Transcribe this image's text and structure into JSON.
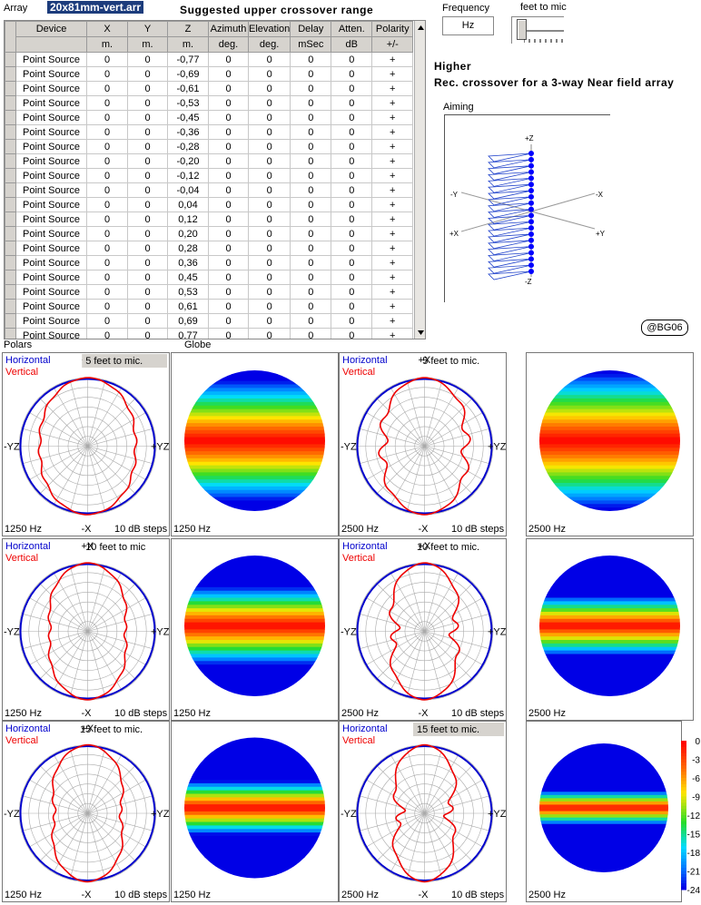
{
  "header": {
    "array_label": "Array",
    "file_name": "20x81mm-vert.arr",
    "title": "Suggested  upper  crossover range",
    "frequency_label": "Frequency",
    "frequency_unit": "Hz",
    "feet_label": "feet to mic"
  },
  "info": {
    "level": "Higher",
    "recommendation": "Rec. crossover for a 3-way Near field array"
  },
  "aiming": {
    "label": "Aiming",
    "axes": {
      "pz": "+Z",
      "mz": "-Z",
      "my": "-Y",
      "mx": "-X",
      "px": "+X",
      "py": "+Y"
    }
  },
  "copyright": "@BG06",
  "table": {
    "headers": [
      "Device",
      "X",
      "Y",
      "Z",
      "Azimuth",
      "Elevation",
      "Delay",
      "Atten.",
      "Polarity"
    ],
    "units": [
      "",
      "m.",
      "m.",
      "m.",
      "deg.",
      "deg.",
      "mSec",
      "dB",
      "+/-"
    ],
    "rows": [
      [
        "Point Source",
        "0",
        "0",
        "-0,77",
        "0",
        "0",
        "0",
        "0",
        "+"
      ],
      [
        "Point Source",
        "0",
        "0",
        "-0,69",
        "0",
        "0",
        "0",
        "0",
        "+"
      ],
      [
        "Point Source",
        "0",
        "0",
        "-0,61",
        "0",
        "0",
        "0",
        "0",
        "+"
      ],
      [
        "Point Source",
        "0",
        "0",
        "-0,53",
        "0",
        "0",
        "0",
        "0",
        "+"
      ],
      [
        "Point Source",
        "0",
        "0",
        "-0,45",
        "0",
        "0",
        "0",
        "0",
        "+"
      ],
      [
        "Point Source",
        "0",
        "0",
        "-0,36",
        "0",
        "0",
        "0",
        "0",
        "+"
      ],
      [
        "Point Source",
        "0",
        "0",
        "-0,28",
        "0",
        "0",
        "0",
        "0",
        "+"
      ],
      [
        "Point Source",
        "0",
        "0",
        "-0,20",
        "0",
        "0",
        "0",
        "0",
        "+"
      ],
      [
        "Point Source",
        "0",
        "0",
        "-0,12",
        "0",
        "0",
        "0",
        "0",
        "+"
      ],
      [
        "Point Source",
        "0",
        "0",
        "-0,04",
        "0",
        "0",
        "0",
        "0",
        "+"
      ],
      [
        "Point Source",
        "0",
        "0",
        "0,04",
        "0",
        "0",
        "0",
        "0",
        "+"
      ],
      [
        "Point Source",
        "0",
        "0",
        "0,12",
        "0",
        "0",
        "0",
        "0",
        "+"
      ],
      [
        "Point Source",
        "0",
        "0",
        "0,20",
        "0",
        "0",
        "0",
        "0",
        "+"
      ],
      [
        "Point Source",
        "0",
        "0",
        "0,28",
        "0",
        "0",
        "0",
        "0",
        "+"
      ],
      [
        "Point Source",
        "0",
        "0",
        "0,36",
        "0",
        "0",
        "0",
        "0",
        "+"
      ],
      [
        "Point Source",
        "0",
        "0",
        "0,45",
        "0",
        "0",
        "0",
        "0",
        "+"
      ],
      [
        "Point Source",
        "0",
        "0",
        "0,53",
        "0",
        "0",
        "0",
        "0",
        "+"
      ],
      [
        "Point Source",
        "0",
        "0",
        "0,61",
        "0",
        "0",
        "0",
        "0",
        "+"
      ],
      [
        "Point Source",
        "0",
        "0",
        "0,69",
        "0",
        "0",
        "0",
        "0",
        "+"
      ],
      [
        "Point Source",
        "0",
        "0",
        "0,77",
        "0",
        "0",
        "0",
        "0",
        "+"
      ]
    ]
  },
  "sections": {
    "polars": "Polars",
    "globe": "Globe"
  },
  "polar_common": {
    "horizontal": "Horizontal",
    "vertical": "Vertical",
    "top": "+X",
    "bottom": "-X",
    "left": "-YZ",
    "right": "+YZ",
    "steps": "10 dB steps"
  },
  "polars": [
    {
      "freq": "1250 Hz",
      "dist": "5 feet to mic.",
      "dist_highlight": true,
      "style": "smooth",
      "depth": 0.3
    },
    {
      "freq": "2500 Hz",
      "dist": "5 feet to mic.",
      "dist_highlight": false,
      "style": "lobed",
      "depth": 0.4
    },
    {
      "freq": "1250 Hz",
      "dist": "10 feet to mic",
      "dist_highlight": false,
      "style": "smooth",
      "depth": 0.45
    },
    {
      "freq": "2500 Hz",
      "dist": "10 feet to mic.",
      "dist_highlight": false,
      "style": "lobed",
      "depth": 0.58
    },
    {
      "freq": "1250 Hz",
      "dist": "15 feet to mic.",
      "dist_highlight": false,
      "style": "smooth",
      "depth": 0.52
    },
    {
      "freq": "2500 Hz",
      "dist": "15 feet to mic.",
      "dist_highlight": true,
      "style": "lobed",
      "depth": 0.66
    }
  ],
  "globes": [
    {
      "freq": "1250 Hz",
      "spread": 0.85
    },
    {
      "freq": "2500 Hz",
      "spread": 0.95
    },
    {
      "freq": "1250 Hz",
      "spread": 0.55
    },
    {
      "freq": "2500 Hz",
      "spread": 0.42
    },
    {
      "freq": "1250 Hz",
      "spread": 0.38
    },
    {
      "freq": "2500 Hz",
      "spread": 0.26
    }
  ],
  "colorbar": {
    "ticks": [
      "0",
      "-3",
      "-6",
      "-9",
      "-12",
      "-15",
      "-18",
      "-21",
      "-24"
    ]
  },
  "colors": {
    "horizontal": "#0000cc",
    "vertical": "#ee0000",
    "grid_header": "#d6d3ce",
    "file_bg": "#1c3c7c"
  }
}
